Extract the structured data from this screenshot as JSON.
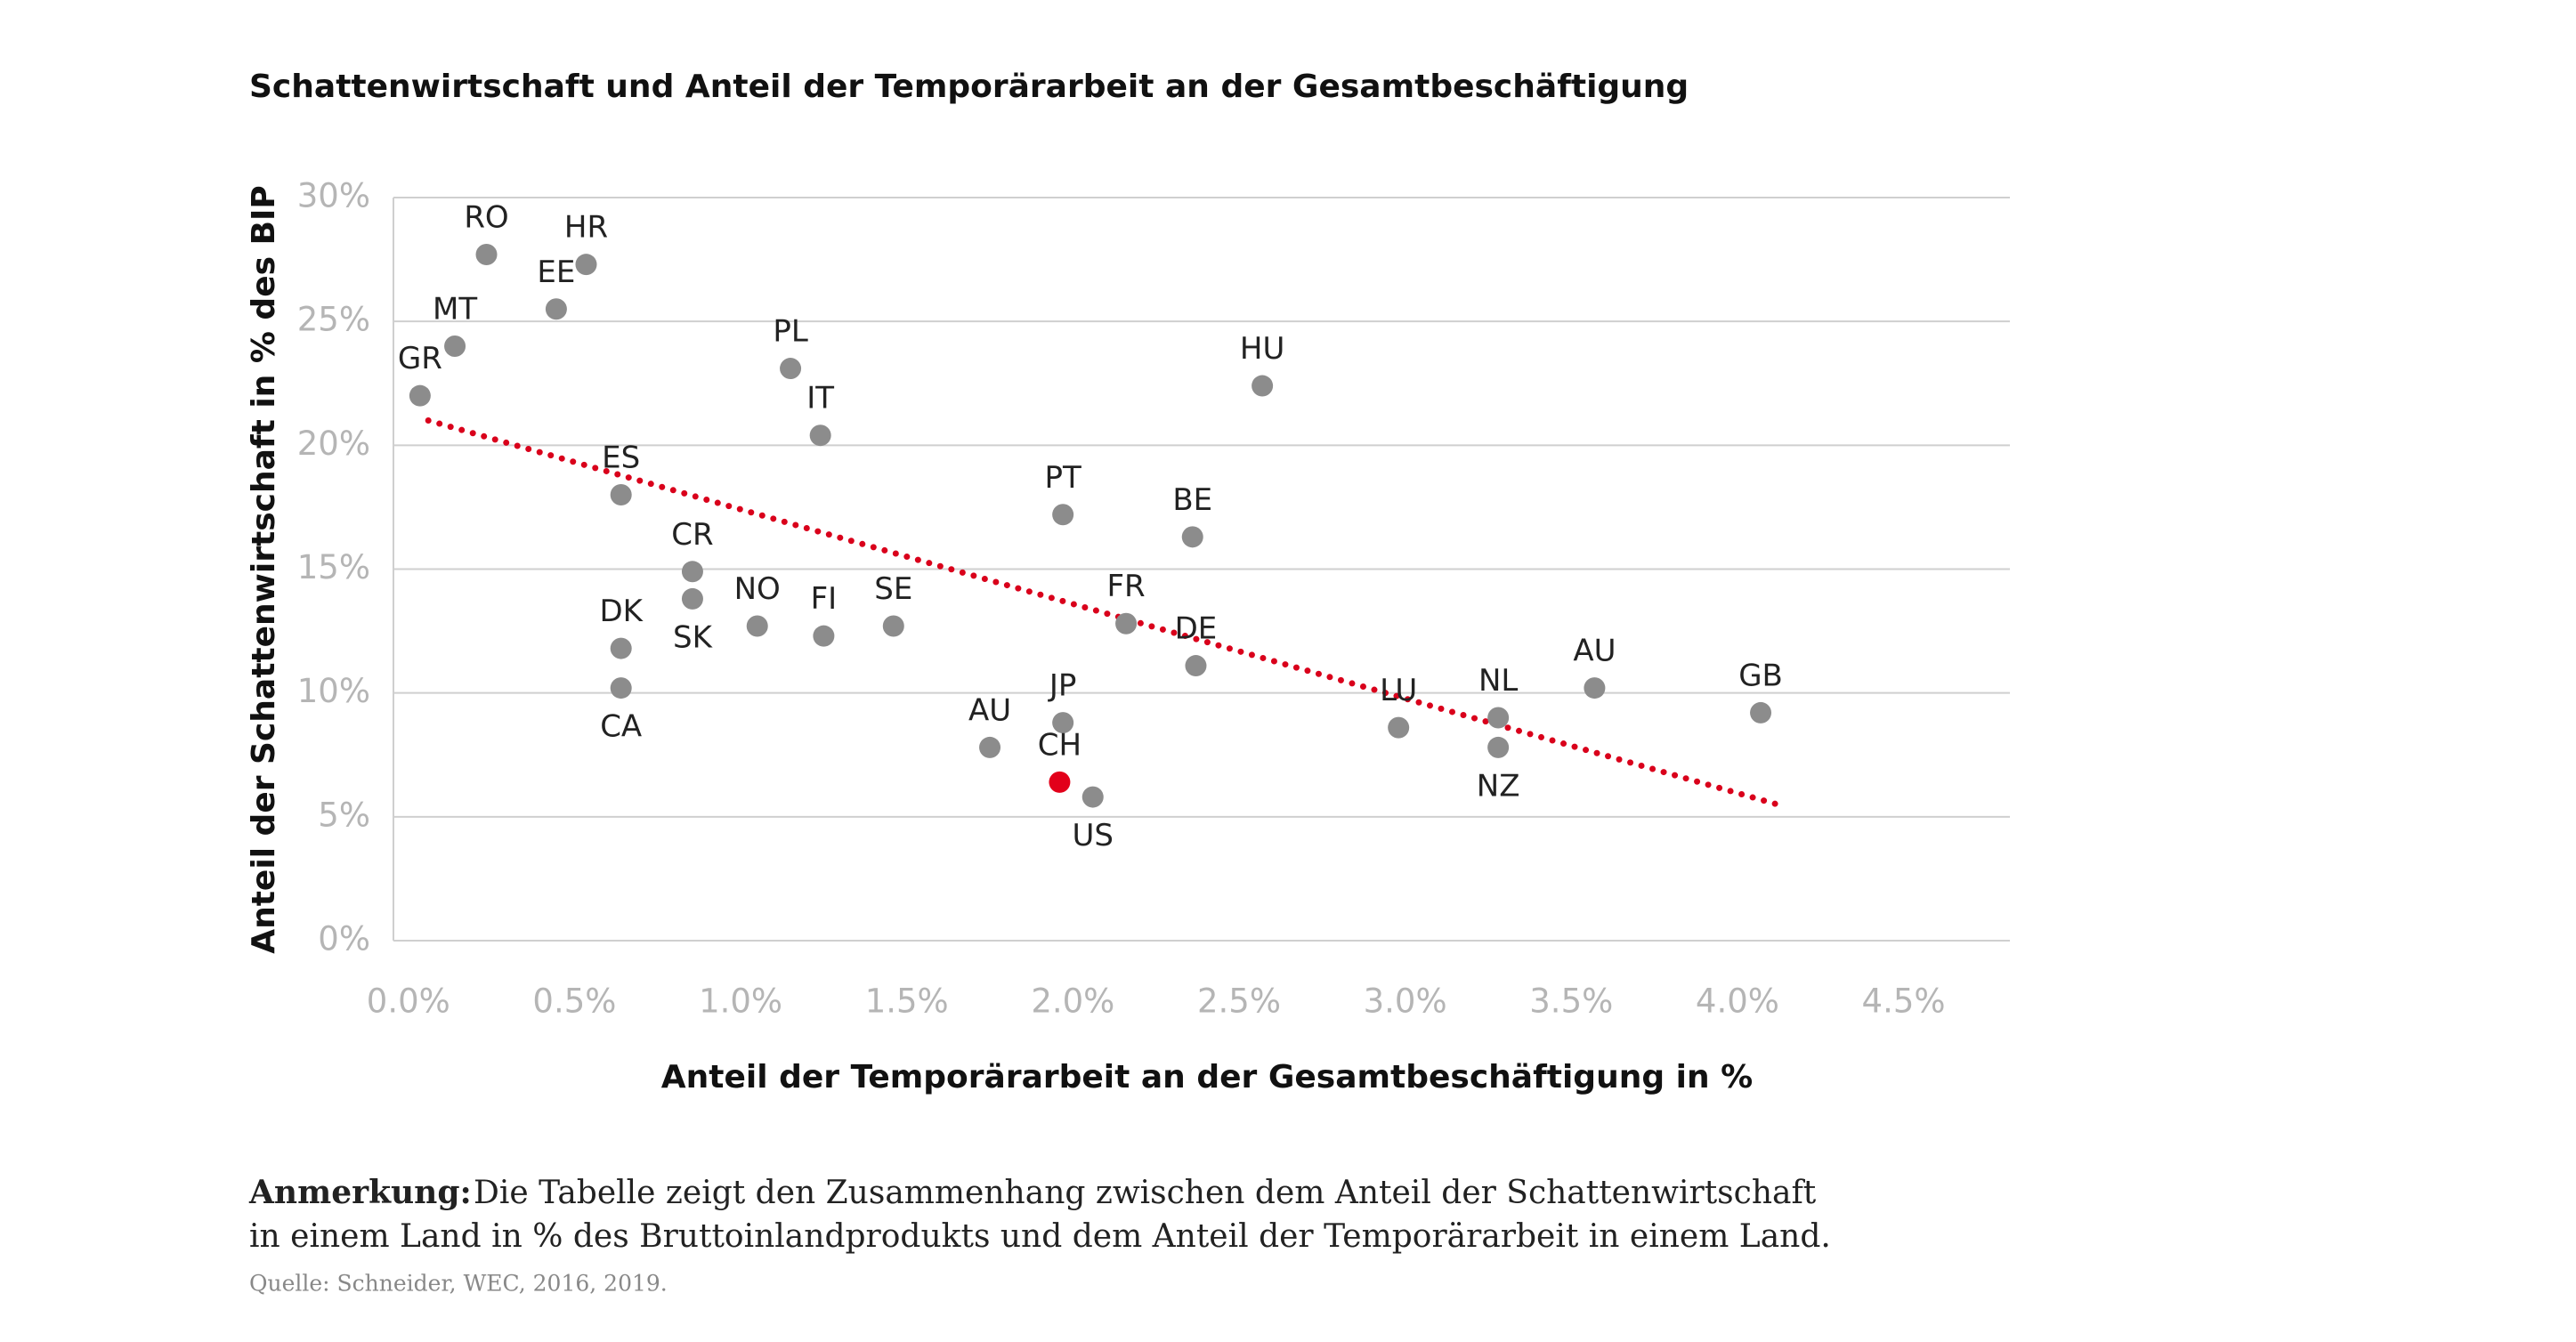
{
  "chart_data": {
    "type": "scatter",
    "title": "Schattenwirtschaft und Anteil der Temporärarbeit an der Gesamtbeschäftigung",
    "xlabel": "Anteil der Temporärarbeit an der Gesamtbeschäftigung in %",
    "ylabel": "Anteil der Schattenwirtschaft in % des BIP",
    "series": [
      {
        "labels": [
          "GR",
          "MT",
          "RO",
          "EE",
          "HR",
          "ES",
          "DK",
          "CA",
          "CR",
          "SK",
          "NO",
          "PL",
          "IT",
          "FI",
          "SE",
          "AU",
          "JP",
          "CH",
          "US",
          "PT",
          "FR",
          "BE",
          "DE",
          "HU",
          "LU",
          "NL",
          "NZ",
          "AU",
          "GB"
        ],
        "x": [
          0.035,
          0.14,
          0.235,
          0.445,
          0.535,
          0.64,
          0.64,
          0.64,
          0.855,
          0.855,
          1.05,
          1.15,
          1.24,
          1.25,
          1.46,
          1.75,
          1.97,
          1.96,
          2.06,
          1.97,
          2.16,
          2.36,
          2.37,
          2.57,
          2.98,
          3.28,
          3.28,
          3.57,
          4.07
        ],
        "values": [
          22.0,
          24.0,
          27.7,
          25.5,
          27.3,
          18.0,
          11.8,
          10.2,
          14.9,
          13.8,
          12.7,
          23.1,
          20.4,
          12.3,
          12.7,
          7.8,
          8.8,
          6.4,
          5.8,
          17.2,
          12.8,
          16.3,
          11.1,
          22.4,
          8.6,
          9.0,
          7.8,
          10.2,
          9.2
        ],
        "colors": [
          "#8c8c8c",
          "#8c8c8c",
          "#8c8c8c",
          "#8c8c8c",
          "#8c8c8c",
          "#8c8c8c",
          "#8c8c8c",
          "#8c8c8c",
          "#8c8c8c",
          "#8c8c8c",
          "#8c8c8c",
          "#8c8c8c",
          "#8c8c8c",
          "#8c8c8c",
          "#8c8c8c",
          "#8c8c8c",
          "#8c8c8c",
          "#e2001a",
          "#8c8c8c",
          "#8c8c8c",
          "#8c8c8c",
          "#8c8c8c",
          "#8c8c8c",
          "#8c8c8c",
          "#8c8c8c",
          "#8c8c8c",
          "#8c8c8c",
          "#8c8c8c",
          "#8c8c8c"
        ]
      }
    ],
    "trendline": {
      "x": [
        0.06,
        4.12
      ],
      "values": [
        21.0,
        5.5
      ],
      "color": "#d9001b"
    },
    "xlim": [
      -0.045,
      4.82
    ],
    "ylim": [
      0,
      30
    ],
    "xticks": [
      {
        "value": 0,
        "label": "0.0%"
      },
      {
        "value": 0.5,
        "label": "0.5%"
      },
      {
        "value": 1,
        "label": "1.0%"
      },
      {
        "value": 1.5,
        "label": "1.5%"
      },
      {
        "value": 2,
        "label": "2.0%"
      },
      {
        "value": 2.5,
        "label": "2.5%"
      },
      {
        "value": 3,
        "label": "3.0%"
      },
      {
        "value": 3.5,
        "label": "3.5%"
      },
      {
        "value": 4,
        "label": "4.0%"
      },
      {
        "value": 4.5,
        "label": "4.5%"
      }
    ],
    "yticks": [
      {
        "value": 0,
        "label": "0%"
      },
      {
        "value": 5,
        "label": "5%"
      },
      {
        "value": 10,
        "label": "10%"
      },
      {
        "value": 15,
        "label": "15%"
      },
      {
        "value": 20,
        "label": "20%"
      },
      {
        "value": 25,
        "label": "25%"
      },
      {
        "value": 30,
        "label": "30%"
      }
    ],
    "grid": true
  },
  "note": {
    "label": "Anmerkung:",
    "text": [
      "Die Tabelle zeigt den Zusammenhang zwischen dem Anteil der Schattenwirtschaft",
      "in einem Land in % des Bruttoinlandprodukts und dem Anteil der Temporärarbeit in einem Land."
    ],
    "source": "Quelle: Schneider, WEC, 2016, 2019."
  }
}
